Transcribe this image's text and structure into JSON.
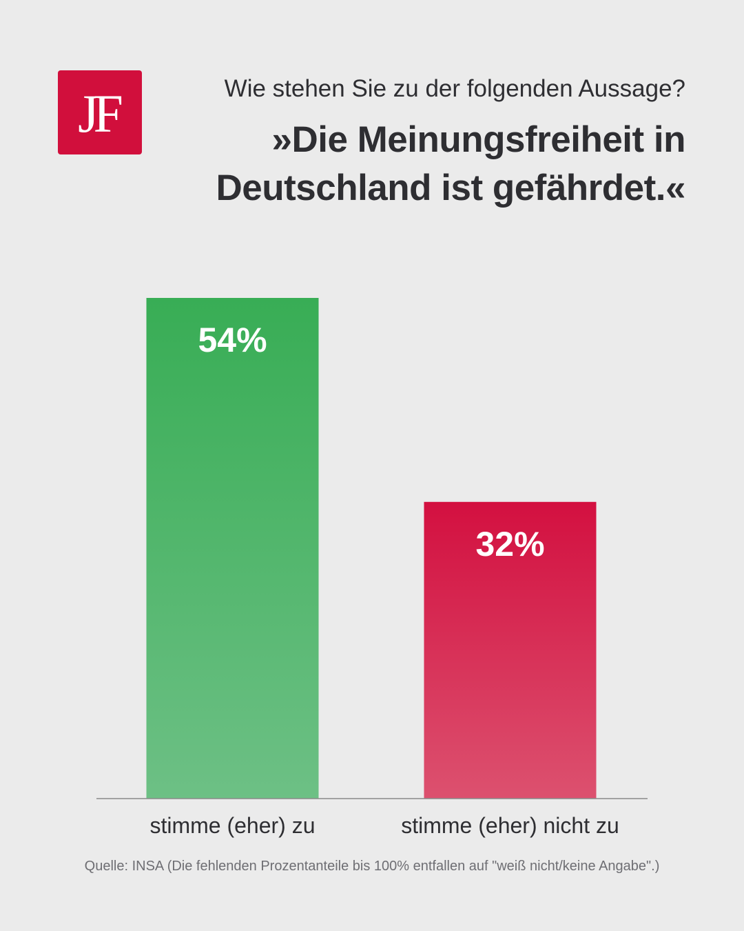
{
  "brand": {
    "logo_text": "JF",
    "accent_color": "#d10f3c"
  },
  "header": {
    "question": "Wie stehen Sie zu der folgenden Aussage?",
    "statement": "»Die Meinungsfreiheit in Deutschland ist gefährdet.«"
  },
  "chart_data": {
    "type": "bar",
    "title": "»Die Meinungsfreiheit in Deutschland ist gefährdet.«",
    "categories": [
      "stimme (eher) zu",
      "stimme (eher) nicht zu"
    ],
    "values": [
      54,
      32
    ],
    "data_labels": [
      "54%",
      "32%"
    ],
    "unit": "%",
    "ylim": [
      0,
      54
    ],
    "grid": false,
    "legend": "none",
    "colors": [
      {
        "top": "#38ad55",
        "bottom": "#6dc085"
      },
      {
        "top": "#d31040",
        "bottom": "#dc516f"
      }
    ]
  },
  "footer": {
    "source": "Quelle: INSA (Die fehlenden Prozentanteile bis 100% entfallen auf \"weiß nicht/keine Angabe\".)"
  }
}
